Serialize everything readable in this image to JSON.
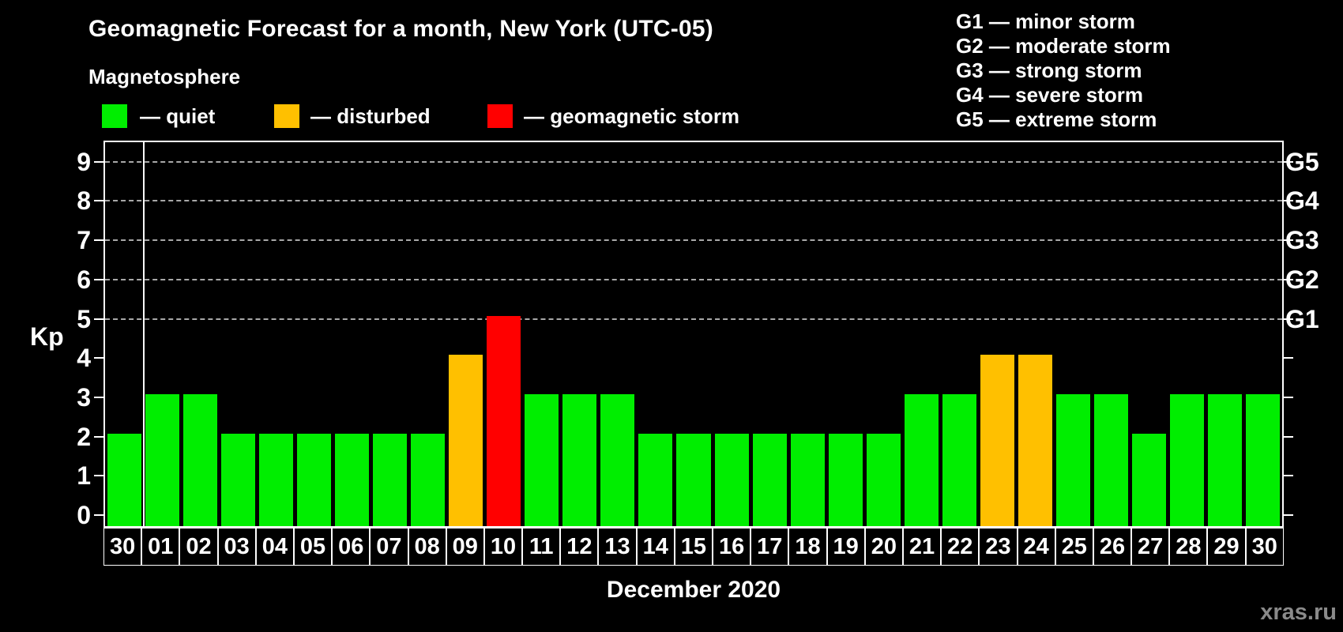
{
  "title": "Geomagnetic Forecast for a month, New York (UTC-05)",
  "subtitle": "Magnetosphere",
  "legend": {
    "items": [
      {
        "key": "quiet",
        "label": "— quiet",
        "color": "#00ee00"
      },
      {
        "key": "disturbed",
        "label": "— disturbed",
        "color": "#ffc000"
      },
      {
        "key": "storm",
        "label": "— geomagnetic storm",
        "color": "#ff0000"
      }
    ]
  },
  "g_legend": [
    "G1 — minor storm",
    "G2 — moderate storm",
    "G3 — strong storm",
    "G4 — severe storm",
    "G5 — extreme storm"
  ],
  "axis": {
    "y_label": "Kp",
    "x_title": "December 2020"
  },
  "watermark": "xras.ru",
  "chart_data": {
    "type": "bar",
    "title": "Geomagnetic Forecast for a month, New York (UTC-05)",
    "xlabel": "December 2020",
    "ylabel": "Kp",
    "categories": [
      "30",
      "01",
      "02",
      "03",
      "04",
      "05",
      "06",
      "07",
      "08",
      "09",
      "10",
      "11",
      "12",
      "13",
      "14",
      "15",
      "16",
      "17",
      "18",
      "19",
      "20",
      "21",
      "22",
      "23",
      "24",
      "25",
      "26",
      "27",
      "28",
      "29",
      "30"
    ],
    "values": [
      2,
      3,
      3,
      2,
      2,
      2,
      2,
      2,
      2,
      4,
      5,
      3,
      3,
      3,
      2,
      2,
      2,
      2,
      2,
      2,
      2,
      3,
      3,
      4,
      4,
      3,
      3,
      2,
      3,
      3,
      3
    ],
    "ylim": [
      -0.37,
      9.5
    ],
    "yticks": [
      0,
      1,
      2,
      3,
      4,
      5,
      6,
      7,
      8,
      9
    ],
    "gridlines": [
      5,
      6,
      7,
      8,
      9
    ],
    "grid_style": "dashed",
    "right_axis": [
      {
        "kp": 5,
        "label": "G1"
      },
      {
        "kp": 6,
        "label": "G2"
      },
      {
        "kp": 7,
        "label": "G3"
      },
      {
        "kp": 8,
        "label": "G4"
      },
      {
        "kp": 9,
        "label": "G5"
      }
    ],
    "color_rule": {
      "disturbed_min": 4,
      "storm_min": 5
    },
    "colors": {
      "quiet": "#00ee00",
      "disturbed": "#ffc000",
      "storm": "#ff0000"
    },
    "separator_after_index": 0,
    "legend_position": "top"
  }
}
